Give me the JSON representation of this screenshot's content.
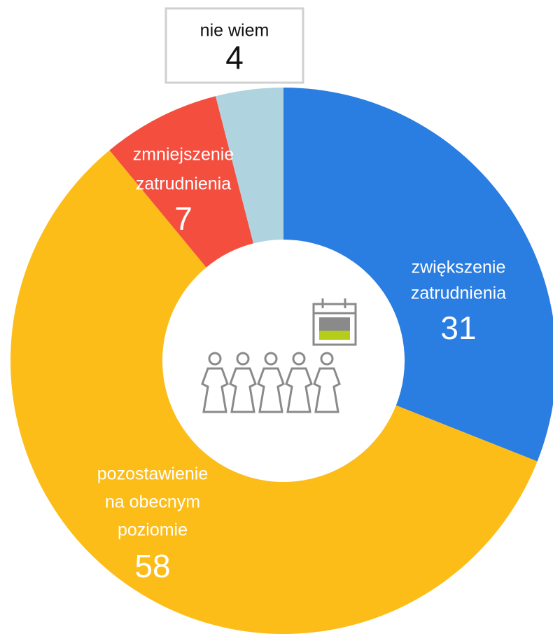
{
  "chart_data": {
    "type": "donut",
    "categories": [
      [
        "zwiększenie",
        "zatrudnienia"
      ],
      [
        "pozostawienie",
        "na obecnym",
        "poziomie"
      ],
      [
        "zmniejszenie",
        "zatrudnienia"
      ],
      [
        "nie wiem"
      ]
    ],
    "values": [
      31,
      58,
      7,
      4
    ],
    "colors": [
      "#2a7de1",
      "#fdbd19",
      "#f44e3f",
      "#afd4df"
    ]
  }
}
